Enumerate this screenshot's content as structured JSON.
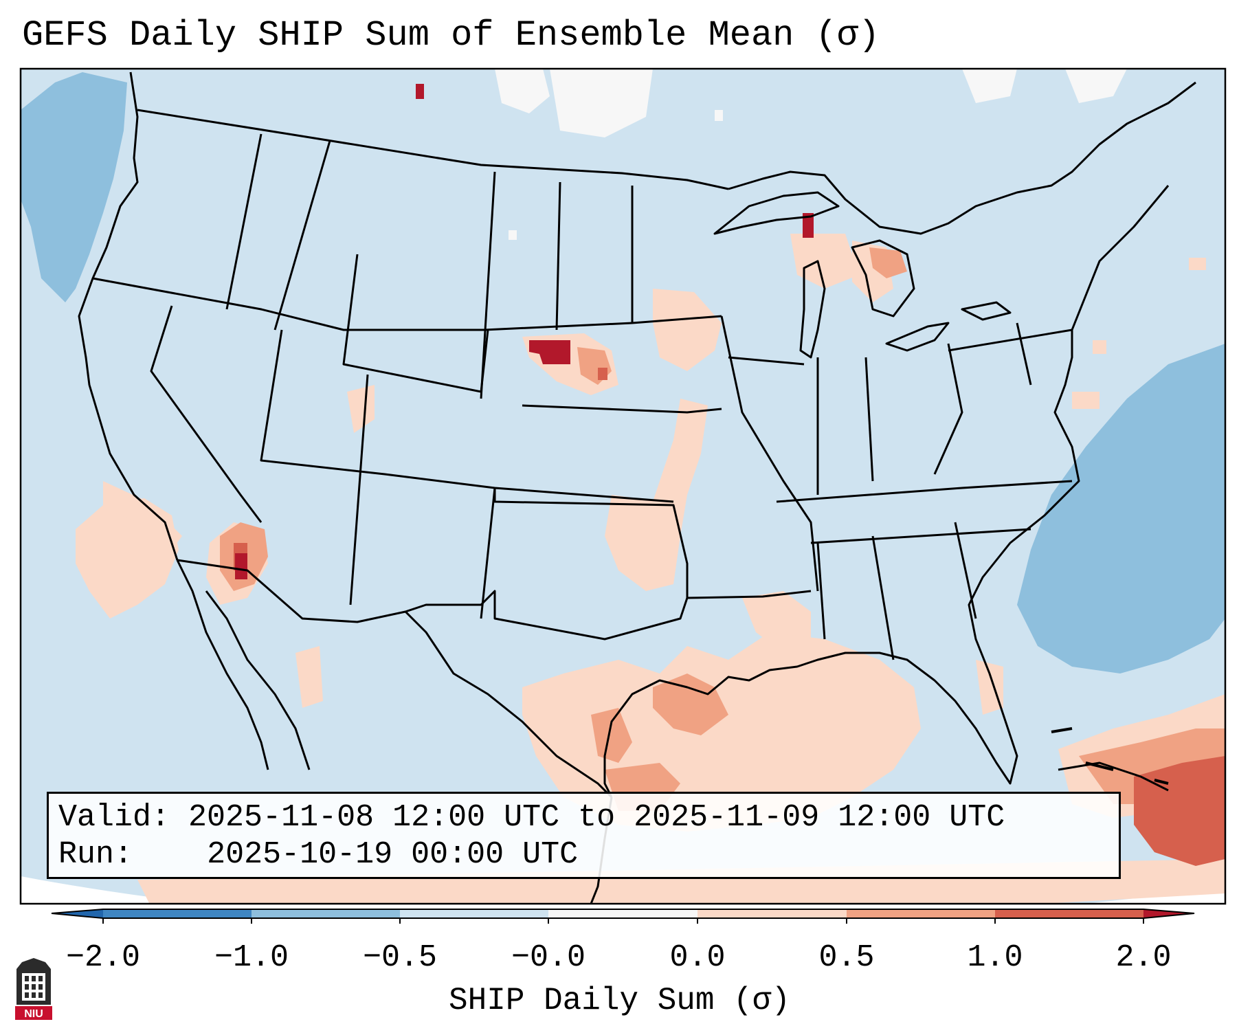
{
  "title": "GEFS Daily SHIP Sum of Ensemble Mean (σ)",
  "info": {
    "valid_label": "Valid:",
    "valid_value": "2025-11-08 12:00 UTC to 2025-11-09 12:00 UTC",
    "run_label": "Run:",
    "run_value": "2025-10-19 00:00 UTC"
  },
  "colorbar": {
    "title": "SHIP Daily Sum (σ)",
    "tick_labels": [
      "−2.0",
      "−1.0",
      "−0.5",
      "−0.0",
      "0.0",
      "0.5",
      "1.0",
      "2.0"
    ],
    "bin_colors": [
      "#3f86c2",
      "#8ebfdd",
      "#cfe3f0",
      "#f7f7f7",
      "#fbd9c7",
      "#f0a283",
      "#d6604d"
    ],
    "extend_colors": {
      "low": "#2166ac",
      "high": "#b2182b"
    }
  },
  "logo": {
    "text": "NIU"
  }
}
